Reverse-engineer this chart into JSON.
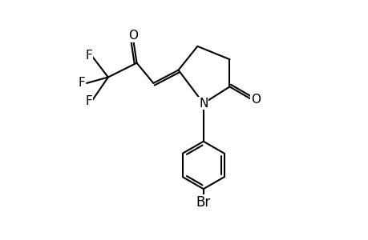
{
  "bg_color": "#ffffff",
  "line_color": "#000000",
  "line_width": 1.5,
  "font_size": 11,
  "figsize": [
    4.6,
    3.0
  ],
  "dpi": 100,
  "xlim": [
    0,
    10
  ],
  "ylim": [
    0,
    10
  ]
}
